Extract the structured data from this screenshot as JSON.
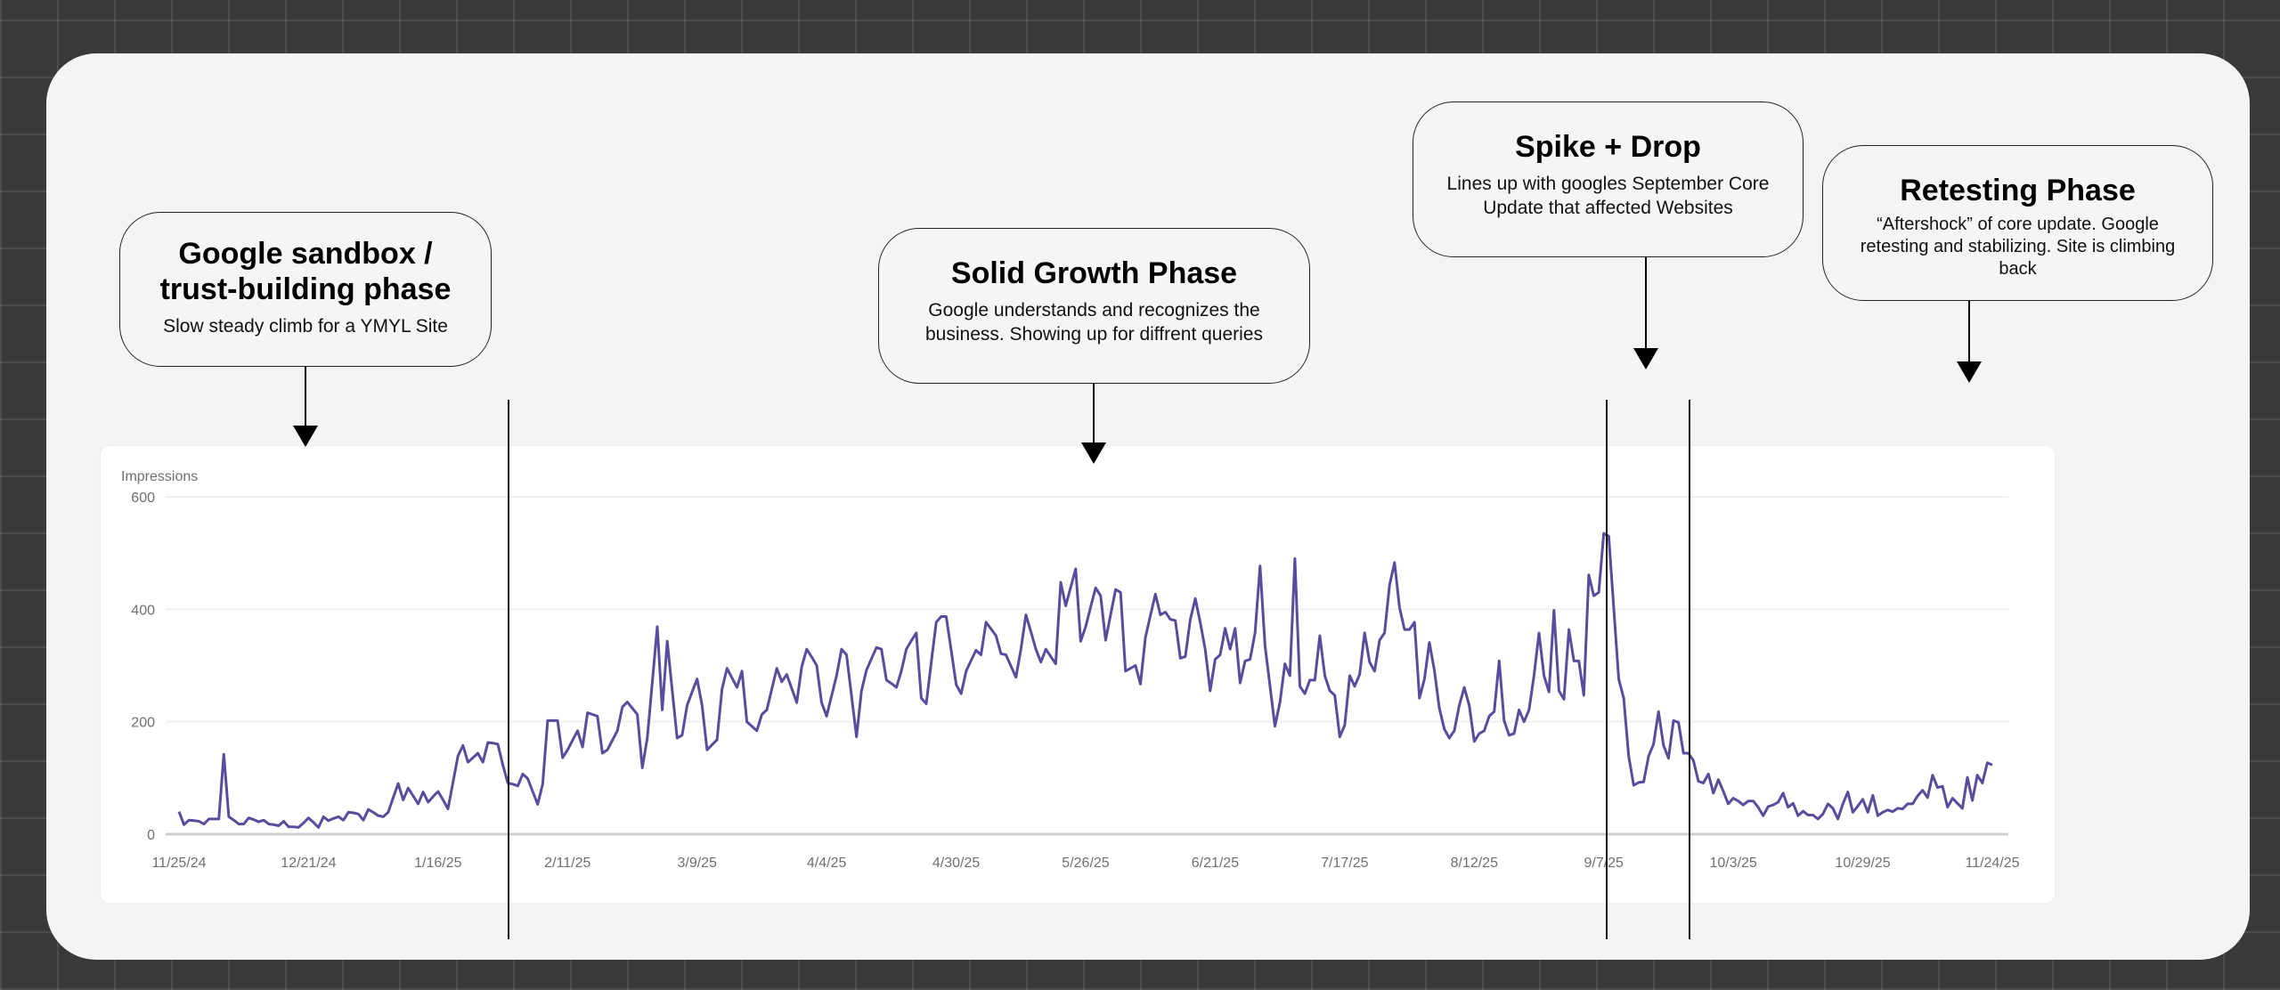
{
  "annotations": [
    {
      "title": "Google sandbox / trust-building phase",
      "title_lines": [
        "Google sandbox /",
        "trust-building phase"
      ],
      "text": "Slow steady climb for a YMYL Site"
    },
    {
      "title": "Solid Growth Phase",
      "text": "Google understands and recognizes the business. Showing up for diffrent queries"
    },
    {
      "title": "Spike + Drop",
      "text": "Lines up with googles September Core Update that affected Websites"
    },
    {
      "title": "Retesting Phase",
      "text": "“Aftershock” of core update. Google retesting and stabilizing. Site is climbing back"
    }
  ],
  "chart_data": {
    "type": "line",
    "title": "",
    "ylabel": "Impressions",
    "xlabel": "",
    "ylim": [
      0,
      600
    ],
    "y_ticks": [
      0,
      200,
      400,
      600
    ],
    "x_ticks": [
      "11/25/24",
      "12/21/24",
      "1/16/25",
      "2/11/25",
      "3/9/25",
      "4/4/25",
      "4/30/25",
      "5/26/25",
      "6/21/25",
      "7/17/25",
      "8/12/25",
      "9/7/25",
      "10/3/25",
      "10/29/25",
      "11/24/25"
    ],
    "x_range": [
      "11/25/24",
      "11/24/25"
    ],
    "grid": true,
    "legend": "none",
    "line_color": "#5a4c9c",
    "series": [
      {
        "values": [
          40,
          17,
          25,
          24,
          23,
          18,
          27,
          27,
          27,
          142,
          31,
          25,
          18,
          18,
          29,
          26,
          22,
          25,
          18,
          17,
          15,
          23,
          13,
          13,
          12,
          20,
          29,
          21,
          12,
          31,
          24,
          28,
          31,
          25,
          39,
          38,
          36,
          25,
          44,
          39,
          33,
          31,
          39,
          65,
          90,
          61,
          82,
          68,
          54,
          75,
          57,
          67,
          76,
          61,
          45,
          92,
          139,
          158,
          128,
          136,
          144,
          128,
          163,
          162,
          160,
          123,
          91,
          89,
          86,
          107,
          99,
          76,
          53,
          89,
          202,
          202,
          202,
          136,
          150,
          167,
          184,
          155,
          216,
          213,
          210,
          144,
          150,
          167,
          184,
          226,
          235,
          224,
          213,
          118,
          171,
          270,
          369,
          221,
          343,
          257,
          171,
          176,
          229,
          253,
          276,
          229,
          150,
          159,
          168,
          258,
          295,
          278,
          261,
          290,
          200,
          192,
          184,
          213,
          221,
          258,
          295,
          271,
          284,
          259,
          234,
          298,
          329,
          315,
          300,
          234,
          210,
          246,
          282,
          329,
          319,
          246,
          173,
          255,
          292,
          312,
          332,
          329,
          274,
          268,
          261,
          290,
          329,
          344,
          358,
          242,
          232,
          305,
          377,
          387,
          387,
          327,
          266,
          250,
          290,
          309,
          327,
          319,
          377,
          365,
          353,
          321,
          319,
          299,
          279,
          329,
          390,
          360,
          329,
          306,
          329,
          316,
          303,
          448,
          406,
          439,
          472,
          343,
          369,
          404,
          438,
          424,
          345,
          390,
          435,
          430,
          290,
          295,
          300,
          267,
          350,
          389,
          427,
          390,
          395,
          382,
          380,
          313,
          316,
          382,
          419,
          377,
          329,
          255,
          311,
          319,
          366,
          329,
          366,
          269,
          308,
          311,
          358,
          477,
          335,
          263,
          192,
          234,
          303,
          282,
          490,
          263,
          250,
          274,
          274,
          353,
          282,
          255,
          247,
          173,
          194,
          282,
          263,
          284,
          358,
          306,
          290,
          345,
          358,
          443,
          483,
          403,
          364,
          364,
          377,
          242,
          276,
          341,
          292,
          224,
          187,
          171,
          184,
          229,
          261,
          229,
          165,
          179,
          184,
          210,
          218,
          308,
          202,
          176,
          179,
          221,
          200,
          221,
          282,
          358,
          282,
          253,
          398,
          255,
          240,
          364,
          308,
          308,
          247,
          461,
          424,
          430,
          535,
          530,
          403,
          276,
          242,
          139,
          87,
          92,
          93,
          139,
          160,
          218,
          158,
          135,
          202,
          199,
          144,
          144,
          131,
          94,
          91,
          107,
          73,
          97,
          76,
          54,
          64,
          59,
          52,
          59,
          59,
          48,
          33,
          49,
          52,
          57,
          73,
          48,
          55,
          33,
          41,
          34,
          34,
          27,
          36,
          54,
          46,
          27,
          54,
          75,
          39,
          50,
          62,
          39,
          69,
          33,
          39,
          43,
          40,
          46,
          45,
          54,
          54,
          68,
          78,
          65,
          105,
          83,
          85,
          48,
          64,
          55,
          46,
          101,
          60,
          105,
          91,
          127,
          123
        ]
      }
    ]
  }
}
